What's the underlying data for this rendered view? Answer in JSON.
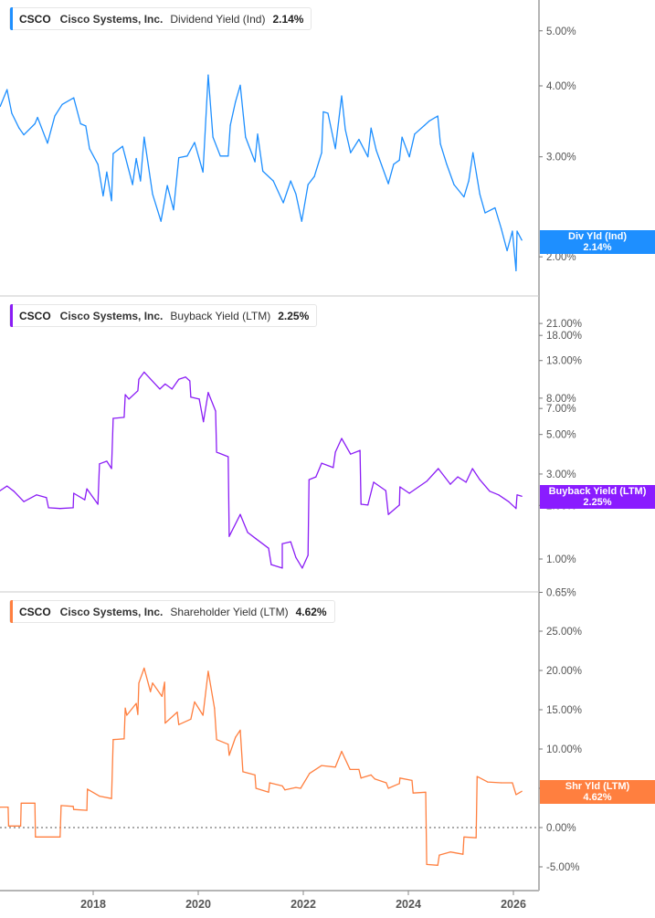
{
  "chart_data": [
    {
      "type": "line",
      "ticker": "CSCO",
      "company": "Cisco Systems, Inc.",
      "metric": "Dividend Yield (Ind)",
      "value": "2.14%",
      "tag_label": "Div Yld (Ind)",
      "tag_value": "2.14%",
      "color": "#1e8fff",
      "yscale": "log",
      "ylim": [
        1.75,
        5.5
      ],
      "yticks": [
        {
          "v": 5,
          "label": "5.00%"
        },
        {
          "v": 4,
          "label": "4.00%"
        },
        {
          "v": 3,
          "label": "3.00%"
        },
        {
          "v": 2,
          "label": "2.00%"
        }
      ],
      "x": [
        2016.23,
        2016.36,
        2016.45,
        2016.59,
        2016.68,
        2016.89,
        2016.94,
        2017.13,
        2017.27,
        2017.41,
        2017.63,
        2017.76,
        2017.86,
        2017.93,
        2018.09,
        2018.19,
        2018.26,
        2018.35,
        2018.38,
        2018.56,
        2018.75,
        2018.82,
        2018.9,
        2018.97,
        2019.13,
        2019.29,
        2019.41,
        2019.53,
        2019.63,
        2019.79,
        2019.93,
        2020.09,
        2020.19,
        2020.28,
        2020.42,
        2020.57,
        2020.61,
        2020.71,
        2020.8,
        2020.9,
        2021.08,
        2021.13,
        2021.23,
        2021.43,
        2021.62,
        2021.76,
        2021.86,
        2021.97,
        2022.09,
        2022.21,
        2022.35,
        2022.38,
        2022.47,
        2022.61,
        2022.73,
        2022.8,
        2022.9,
        2023.06,
        2023.23,
        2023.29,
        2023.39,
        2023.62,
        2023.72,
        2023.83,
        2023.88,
        2024.02,
        2024.12,
        2024.31,
        2024.4,
        2024.56,
        2024.61,
        2024.73,
        2024.87,
        2025.06,
        2025.15,
        2025.23,
        2025.36,
        2025.46,
        2025.65,
        2025.77,
        2025.88,
        2025.98,
        2026.05,
        2026.07,
        2026.16
      ],
      "y": [
        3.68,
        3.94,
        3.58,
        3.37,
        3.28,
        3.43,
        3.52,
        3.17,
        3.54,
        3.71,
        3.81,
        3.43,
        3.4,
        3.1,
        2.91,
        2.56,
        2.82,
        2.51,
        3.04,
        3.13,
        2.68,
        2.98,
        2.72,
        3.25,
        2.58,
        2.31,
        2.67,
        2.42,
        2.99,
        3.01,
        3.18,
        2.82,
        4.18,
        3.25,
        3.01,
        3.01,
        3.41,
        3.75,
        4.01,
        3.25,
        2.94,
        3.29,
        2.83,
        2.72,
        2.49,
        2.72,
        2.58,
        2.31,
        2.68,
        2.77,
        3.05,
        3.6,
        3.58,
        3.1,
        3.84,
        3.35,
        3.05,
        3.22,
        3.0,
        3.37,
        3.08,
        2.69,
        2.91,
        2.96,
        3.25,
        3.0,
        3.29,
        3.41,
        3.47,
        3.54,
        3.16,
        2.91,
        2.68,
        2.55,
        2.72,
        3.05,
        2.58,
        2.39,
        2.44,
        2.24,
        2.05,
        2.22,
        1.89,
        2.22,
        2.14
      ]
    },
    {
      "type": "line",
      "ticker": "CSCO",
      "company": "Cisco Systems, Inc.",
      "metric": "Buyback Yield (LTM)",
      "value": "2.25%",
      "tag_label": "Buyback Yield (LTM)",
      "tag_value": "2.25%",
      "color": "#8a1cf5",
      "yscale": "log",
      "ylim": [
        0.65,
        35
      ],
      "yticks": [
        {
          "v": 21,
          "label": "21.00%"
        },
        {
          "v": 18,
          "label": "18.00%"
        },
        {
          "v": 13,
          "label": "13.00%"
        },
        {
          "v": 8,
          "label": "8.00%"
        },
        {
          "v": 7,
          "label": "7.00%"
        },
        {
          "v": 5,
          "label": "5.00%"
        },
        {
          "v": 3,
          "label": "3.00%"
        },
        {
          "v": 2,
          "label": "2.00%"
        },
        {
          "v": 1,
          "label": "1.00%"
        },
        {
          "v": 0.65,
          "label": "0.65%"
        }
      ],
      "x": [
        2016.23,
        2016.36,
        2016.49,
        2016.68,
        2016.92,
        2017.11,
        2017.15,
        2017.37,
        2017.62,
        2017.63,
        2017.84,
        2017.88,
        2018.09,
        2018.12,
        2018.26,
        2018.35,
        2018.38,
        2018.59,
        2018.61,
        2018.68,
        2018.85,
        2018.87,
        2018.97,
        2019.27,
        2019.37,
        2019.5,
        2019.63,
        2019.76,
        2019.84,
        2019.86,
        2020.02,
        2020.1,
        2020.19,
        2020.33,
        2020.35,
        2020.57,
        2020.59,
        2020.8,
        2020.94,
        2021.1,
        2021.34,
        2021.39,
        2021.6,
        2021.6,
        2021.76,
        2021.86,
        2021.98,
        2022.09,
        2022.11,
        2022.24,
        2022.35,
        2022.57,
        2022.61,
        2022.73,
        2022.9,
        2023.08,
        2023.1,
        2023.23,
        2023.34,
        2023.57,
        2023.62,
        2023.83,
        2023.84,
        2024.02,
        2024.35,
        2024.57,
        2024.8,
        2024.94,
        2025.1,
        2025.22,
        2025.36,
        2025.55,
        2025.72,
        2025.91,
        2026.05,
        2026.07,
        2026.16
      ],
      "y": [
        2.42,
        2.57,
        2.4,
        2.1,
        2.29,
        2.21,
        1.94,
        1.92,
        1.94,
        2.34,
        2.15,
        2.48,
        2.03,
        3.42,
        3.54,
        3.22,
        6.16,
        6.24,
        8.37,
        7.9,
        8.8,
        10.2,
        11.2,
        9.0,
        9.6,
        9.0,
        10.2,
        10.5,
        10.0,
        8.1,
        7.9,
        5.9,
        8.6,
        6.77,
        3.98,
        3.75,
        1.34,
        1.78,
        1.41,
        1.3,
        1.15,
        0.93,
        0.89,
        1.22,
        1.25,
        1.02,
        0.89,
        1.05,
        2.79,
        2.89,
        3.45,
        3.26,
        3.98,
        4.75,
        3.88,
        4.07,
        2.03,
        2.01,
        2.7,
        2.42,
        1.78,
        2.01,
        2.54,
        2.34,
        2.73,
        3.22,
        2.63,
        2.89,
        2.7,
        3.22,
        2.79,
        2.4,
        2.29,
        2.1,
        1.92,
        2.29,
        2.25
      ]
    },
    {
      "type": "line",
      "ticker": "CSCO",
      "company": "Cisco Systems, Inc.",
      "metric": "Shareholder Yield (LTM)",
      "value": "4.62%",
      "tag_label": "Shr Yld (LTM)",
      "tag_value": "4.62%",
      "color": "#ff7f3f",
      "yscale": "linear",
      "ylim": [
        -8,
        29
      ],
      "yticks": [
        {
          "v": 25,
          "label": "25.00%"
        },
        {
          "v": 20,
          "label": "20.00%"
        },
        {
          "v": 15,
          "label": "15.00%"
        },
        {
          "v": 10,
          "label": "10.00%"
        },
        {
          "v": 5,
          "label": "5.00%"
        },
        {
          "v": 0,
          "label": "0.00%"
        },
        {
          "v": -5,
          "label": "-5.00%"
        }
      ],
      "zero_line": true,
      "x": [
        2016.23,
        2016.38,
        2016.39,
        2016.62,
        2016.63,
        2016.89,
        2016.9,
        2017.37,
        2017.39,
        2017.62,
        2017.63,
        2017.88,
        2017.89,
        2018.12,
        2018.35,
        2018.38,
        2018.59,
        2018.61,
        2018.64,
        2018.82,
        2018.85,
        2018.87,
        2018.97,
        2019.09,
        2019.13,
        2019.31,
        2019.36,
        2019.37,
        2019.6,
        2019.63,
        2019.86,
        2019.93,
        2020.09,
        2020.19,
        2020.31,
        2020.35,
        2020.57,
        2020.59,
        2020.71,
        2020.8,
        2020.85,
        2021.08,
        2021.1,
        2021.34,
        2021.36,
        2021.6,
        2021.65,
        2021.86,
        2021.95,
        2022.12,
        2022.35,
        2022.61,
        2022.73,
        2022.89,
        2023.06,
        2023.1,
        2023.29,
        2023.36,
        2023.58,
        2023.62,
        2023.83,
        2023.84,
        2024.07,
        2024.09,
        2024.33,
        2024.35,
        2024.56,
        2024.59,
        2024.8,
        2025.04,
        2025.06,
        2025.29,
        2025.31,
        2025.51,
        2025.77,
        2025.98,
        2026.05,
        2026.16
      ],
      "y": [
        2.6,
        2.6,
        0.2,
        0.2,
        3.1,
        3.1,
        -1.2,
        -1.2,
        2.8,
        2.7,
        2.3,
        2.2,
        4.9,
        4.0,
        3.7,
        11.2,
        11.3,
        15.2,
        14.3,
        15.8,
        14.4,
        18.4,
        20.3,
        17.3,
        18.4,
        16.7,
        18.5,
        13.3,
        14.7,
        13.1,
        13.8,
        16.0,
        14.3,
        19.9,
        15.2,
        11.2,
        10.6,
        9.2,
        11.5,
        12.4,
        7.1,
        6.7,
        5.0,
        4.5,
        5.7,
        5.3,
        4.8,
        5.1,
        5.0,
        6.9,
        7.9,
        7.7,
        9.7,
        7.4,
        7.4,
        6.3,
        6.7,
        6.2,
        5.7,
        5.0,
        5.6,
        6.3,
        6.0,
        4.4,
        4.5,
        -4.7,
        -4.8,
        -3.5,
        -3.1,
        -3.4,
        -1.2,
        -1.3,
        6.5,
        5.8,
        5.7,
        5.7,
        4.2,
        4.62
      ]
    }
  ],
  "x_axis": {
    "ticks": [
      {
        "v": 2018,
        "label": "2018"
      },
      {
        "v": 2020,
        "label": "2020"
      },
      {
        "v": 2022,
        "label": "2022"
      },
      {
        "v": 2024,
        "label": "2024"
      },
      {
        "v": 2026,
        "label": "2026"
      }
    ]
  }
}
